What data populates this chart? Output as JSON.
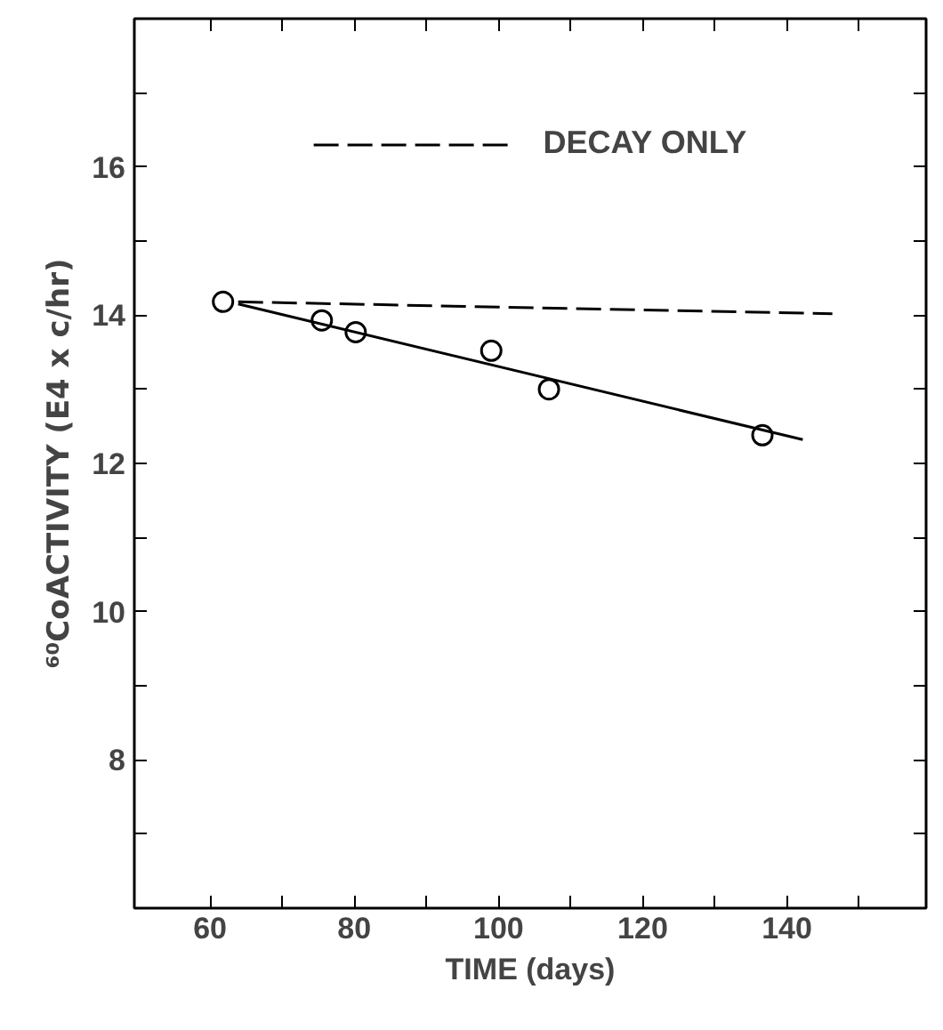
{
  "chart_data": {
    "type": "scatter",
    "xlabel": "TIME (days)",
    "ylabel": "⁶⁰CoACTIVITY (E4 x c/hr)",
    "xlim": [
      49.5,
      159.3
    ],
    "ylim": [
      6,
      18
    ],
    "xticks": [
      60,
      {
        "value": 70,
        "label": null
      },
      80,
      {
        "value": 90,
        "label": null
      },
      100,
      {
        "value": 110,
        "label": null
      },
      120,
      {
        "value": 130,
        "label": null
      },
      140,
      {
        "value": 150,
        "label": null
      }
    ],
    "yticks": [
      {
        "value": 7,
        "label": null
      },
      8,
      {
        "value": 9,
        "label": null
      },
      10,
      {
        "value": 11,
        "label": null
      },
      12,
      {
        "value": 13,
        "label": null
      },
      14,
      {
        "value": 15,
        "label": null
      },
      16,
      {
        "value": 17,
        "label": null
      }
    ],
    "series": [
      {
        "color": "#000000",
        "marker": "circle",
        "x": [
          61.8,
          75.5,
          80.2,
          99.0,
          107.0,
          136.6
        ],
        "values": [
          14.18,
          13.93,
          13.77,
          13.52,
          13.0,
          12.38
        ]
      },
      {
        "type": "line",
        "color": "#000000",
        "line_style": "solid",
        "x": [
          63.9,
          142.2
        ],
        "values": [
          14.15,
          12.32
        ]
      },
      {
        "type": "line",
        "name": "DECAY ONLY",
        "color": "#000000",
        "line_style": "dashed",
        "x": [
          63.9,
          146.3
        ],
        "values": [
          14.18,
          14.02
        ]
      }
    ],
    "legend": "top",
    "grid": false
  }
}
